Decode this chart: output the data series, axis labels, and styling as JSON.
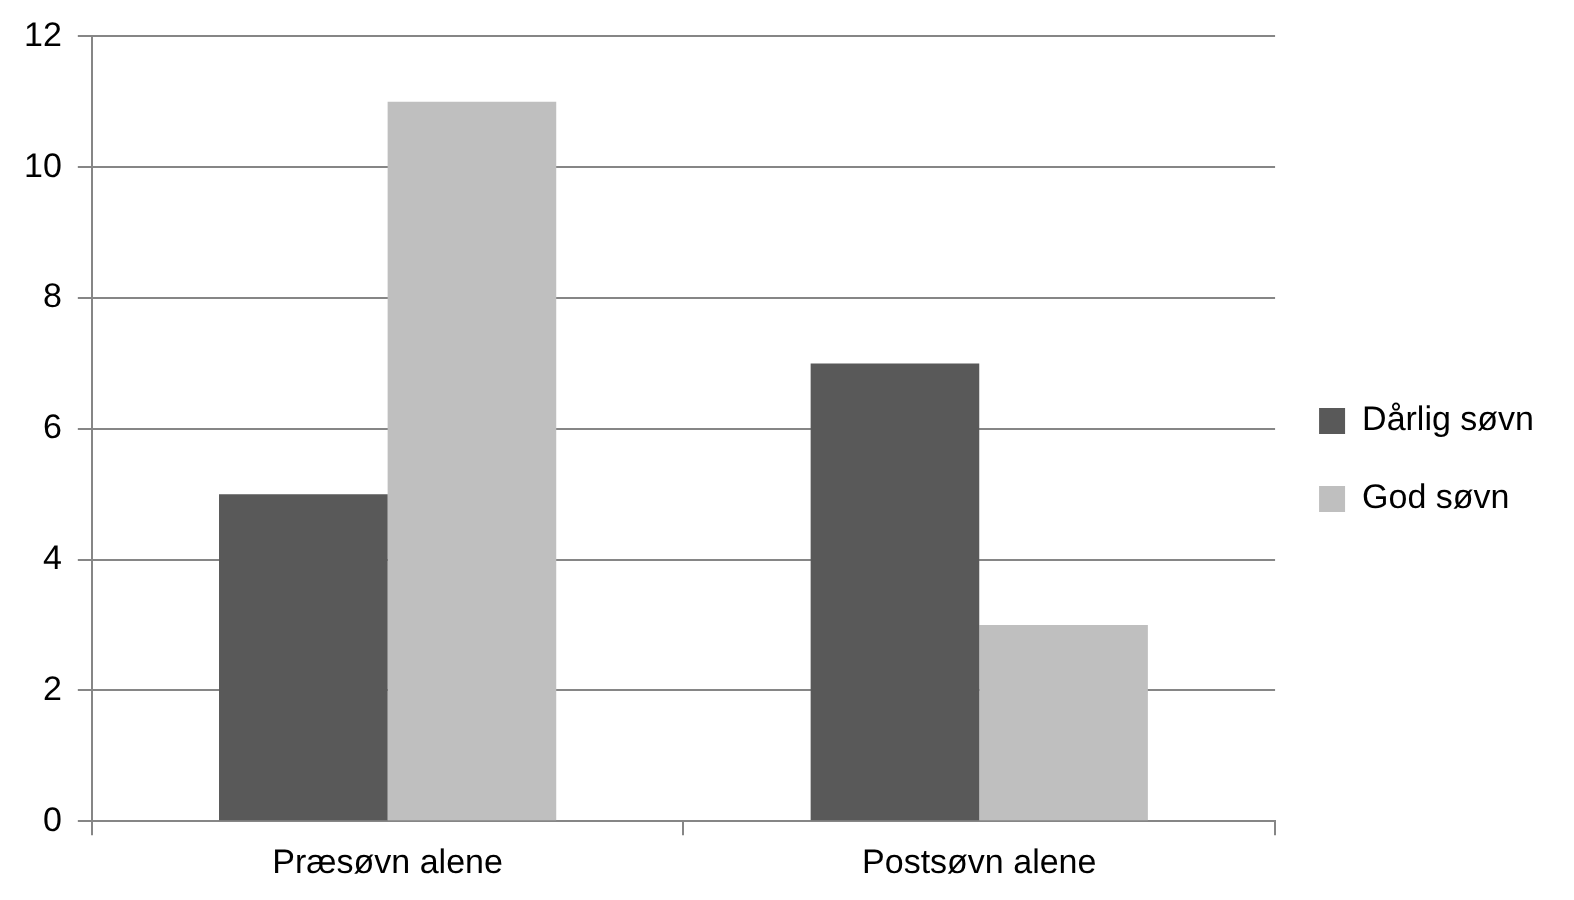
{
  "chart_data": {
    "type": "bar",
    "categories": [
      "Præsøvn alene",
      "Postsøvn alene"
    ],
    "series": [
      {
        "name": "Dårlig søvn",
        "color": "#595959",
        "values": [
          5,
          7
        ]
      },
      {
        "name": "God søvn",
        "color": "#bfbfbf",
        "values": [
          11,
          3
        ]
      }
    ],
    "ylim": [
      0,
      12
    ],
    "yticks": [
      0,
      2,
      4,
      6,
      8,
      10,
      12
    ],
    "grid": "y",
    "legend": "right"
  }
}
